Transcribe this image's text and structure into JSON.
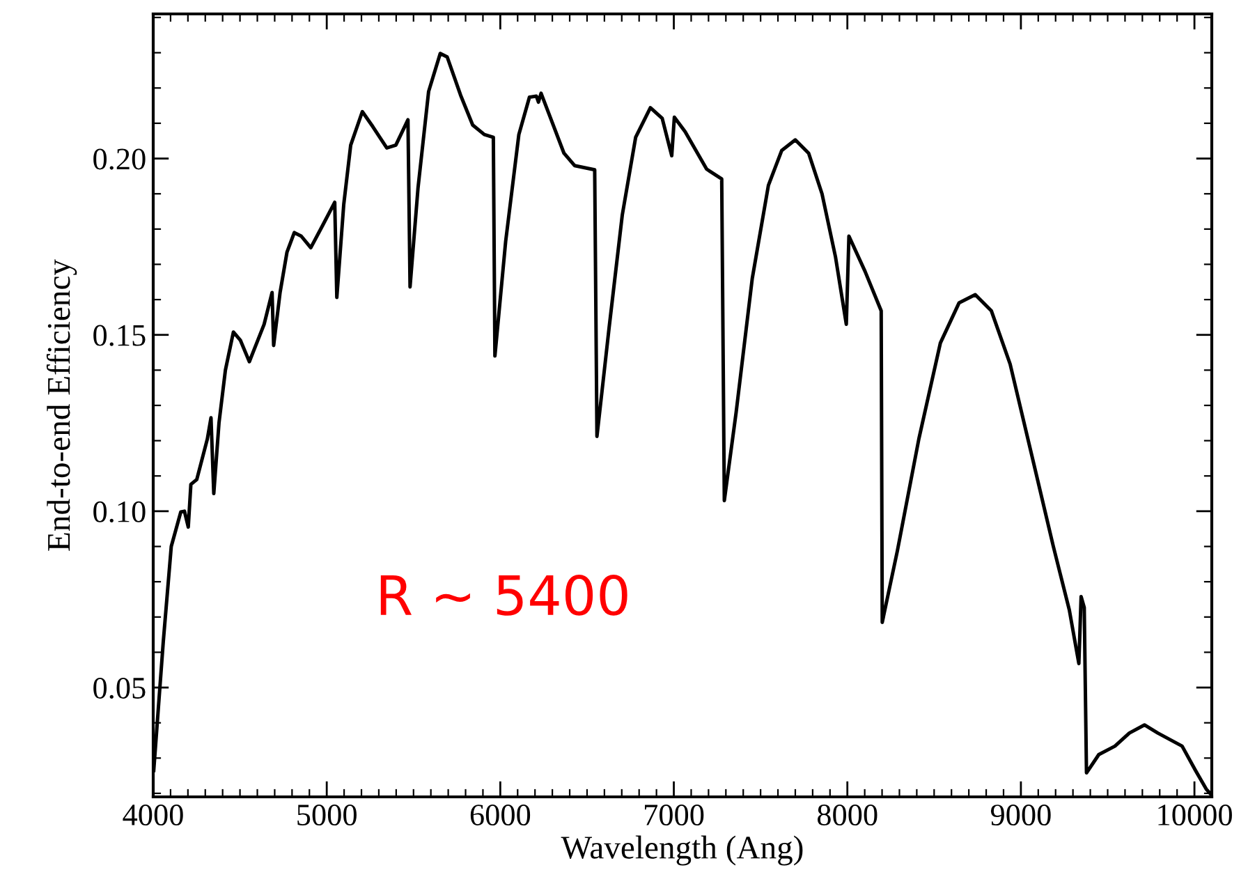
{
  "chart_data": {
    "type": "line",
    "xlabel": "Wavelength (Ang)",
    "ylabel": "End-to-end Efficiency",
    "xlim": [
      4000,
      10100
    ],
    "ylim": [
      0.019,
      0.241
    ],
    "xticks": [
      4000,
      5000,
      6000,
      7000,
      8000,
      9000,
      10000
    ],
    "yticks": [
      0.05,
      {
        "value": 0.1,
        "label": "0.10"
      },
      0.15,
      {
        "value": 0.2,
        "label": "0.20"
      }
    ],
    "grid": false,
    "marker": "none",
    "line_style": "solid",
    "annotations": [
      "R ~ 5400"
    ],
    "series": [
      {
        "color": "#000000",
        "x": [
          4003,
          4058,
          4104,
          4159,
          4180,
          4202,
          4217,
          4251,
          4312,
          4333,
          4349,
          4379,
          4416,
          4462,
          4502,
          4554,
          4639,
          4685,
          4694,
          4731,
          4771,
          4813,
          4853,
          4908,
          4976,
          5046,
          5058,
          5098,
          5138,
          5205,
          5266,
          5346,
          5398,
          5468,
          5480,
          5526,
          5587,
          5654,
          5694,
          5771,
          5841,
          5908,
          5960,
          5969,
          6031,
          6107,
          6168,
          6208,
          6220,
          6235,
          6291,
          6367,
          6428,
          6544,
          6557,
          6627,
          6703,
          6780,
          6865,
          6933,
          6988,
          7003,
          7065,
          7189,
          7276,
          7291,
          7359,
          7452,
          7545,
          7622,
          7700,
          7777,
          7854,
          7932,
          7994,
          8009,
          8102,
          8195,
          8201,
          8288,
          8412,
          8536,
          8644,
          8737,
          8830,
          8938,
          9062,
          9186,
          9279,
          9334,
          9347,
          9365,
          9378,
          9449,
          9542,
          9625,
          9712,
          9789,
          9929,
          10006,
          10068,
          10090
        ],
        "values": [
          0.0265,
          0.063,
          0.09,
          0.0998,
          0.1,
          0.0955,
          0.1076,
          0.109,
          0.1205,
          0.1265,
          0.105,
          0.125,
          0.14,
          0.1508,
          0.1485,
          0.1424,
          0.153,
          0.162,
          0.147,
          0.162,
          0.1735,
          0.179,
          0.178,
          0.1747,
          0.181,
          0.1876,
          0.1606,
          0.187,
          0.2038,
          0.2133,
          0.209,
          0.203,
          0.2038,
          0.211,
          0.1636,
          0.1917,
          0.219,
          0.2298,
          0.2288,
          0.218,
          0.2095,
          0.2068,
          0.206,
          0.144,
          0.1765,
          0.2068,
          0.2174,
          0.2177,
          0.216,
          0.2185,
          0.2113,
          0.2015,
          0.198,
          0.1968,
          0.1212,
          0.152,
          0.184,
          0.206,
          0.2144,
          0.2114,
          0.2008,
          0.2117,
          0.2076,
          0.197,
          0.1942,
          0.103,
          0.128,
          0.166,
          0.1924,
          0.2023,
          0.2053,
          0.2015,
          0.19,
          0.172,
          0.153,
          0.178,
          0.168,
          0.1568,
          0.0685,
          0.0887,
          0.1205,
          0.1477,
          0.1591,
          0.1614,
          0.1568,
          0.1417,
          0.116,
          0.0902,
          0.072,
          0.0568,
          0.0758,
          0.0727,
          0.0258,
          0.031,
          0.0334,
          0.0371,
          0.0394,
          0.0371,
          0.0334,
          0.0265,
          0.0212,
          0.02
        ]
      }
    ]
  }
}
